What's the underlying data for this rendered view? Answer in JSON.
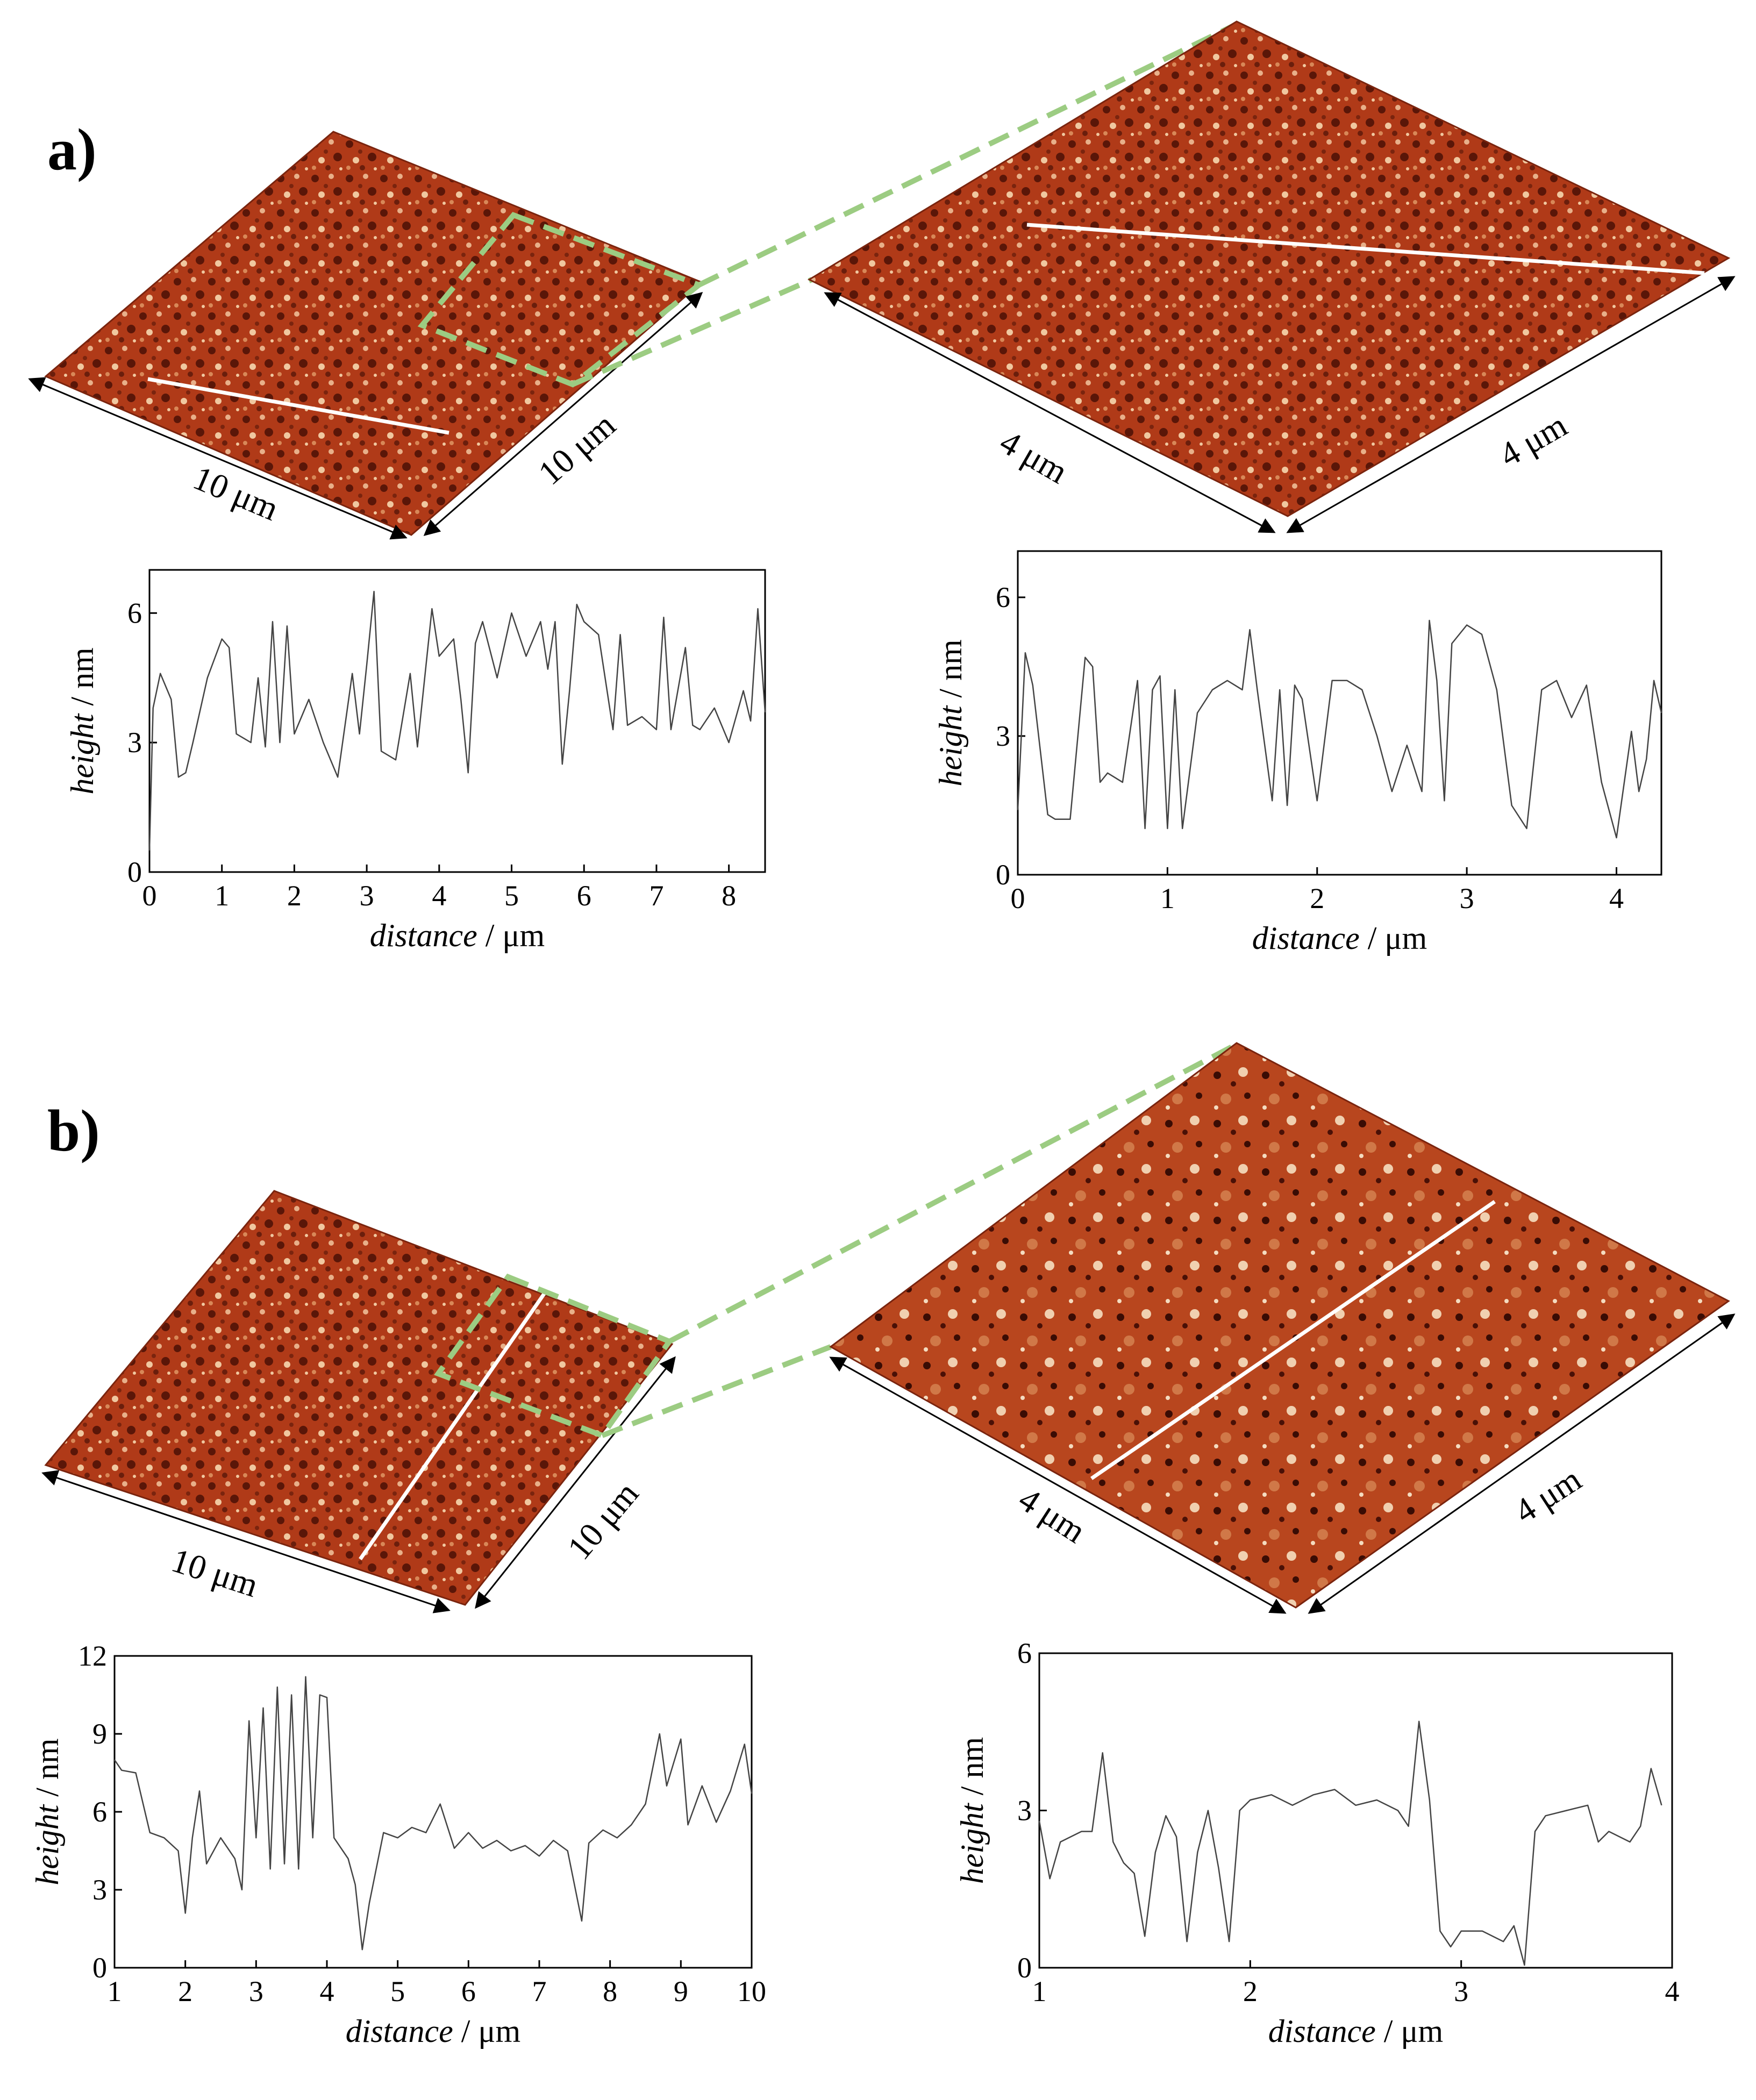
{
  "panels": [
    {
      "label": "a)",
      "large_scan": {
        "x_label": "10 μm",
        "y_label": "10 μm"
      },
      "zoom_scan": {
        "x_label": "4 μm",
        "y_label": "4 μm"
      }
    },
    {
      "label": "b)",
      "large_scan": {
        "x_label": "10 μm",
        "y_label": "10 μm"
      },
      "zoom_scan": {
        "x_label": "4 μm",
        "y_label": "4 μm"
      }
    }
  ],
  "colors": {
    "afm_dark": "#5a1608",
    "afm_mid": "#b8401c",
    "afm_light": "#f0c8a0",
    "zoom_box": "#9ccc82",
    "profile_line": "#ffffff",
    "trace": "#444444"
  },
  "chart_data": [
    {
      "type": "line",
      "panel": "a)",
      "xlabel_italic": "distance",
      "xlabel_unit": " / μm",
      "ylabel_italic": "height",
      "ylabel_unit": " / nm",
      "xlim": [
        0,
        8.5
      ],
      "ylim": [
        0,
        7
      ],
      "xticks": [
        "0",
        "1",
        "2",
        "3",
        "4",
        "5",
        "6",
        "7",
        "8"
      ],
      "yticks": [
        "0",
        "3",
        "6"
      ],
      "x": [
        0,
        0.05,
        0.15,
        0.3,
        0.4,
        0.5,
        0.6,
        0.8,
        1.0,
        1.1,
        1.2,
        1.4,
        1.5,
        1.6,
        1.7,
        1.8,
        1.9,
        2.0,
        2.2,
        2.4,
        2.6,
        2.8,
        2.9,
        3.0,
        3.1,
        3.2,
        3.4,
        3.6,
        3.7,
        3.9,
        4.0,
        4.2,
        4.3,
        4.4,
        4.5,
        4.6,
        4.8,
        5.0,
        5.2,
        5.4,
        5.5,
        5.6,
        5.7,
        5.8,
        5.9,
        6.0,
        6.2,
        6.4,
        6.5,
        6.6,
        6.8,
        7.0,
        7.1,
        7.2,
        7.4,
        7.5,
        7.6,
        7.8,
        8.0,
        8.2,
        8.3,
        8.4,
        8.5
      ],
      "y": [
        0.5,
        3.8,
        4.6,
        4.0,
        2.2,
        2.3,
        3.0,
        4.5,
        5.4,
        5.2,
        3.2,
        3.0,
        4.5,
        2.9,
        5.8,
        3.0,
        5.7,
        3.2,
        4.0,
        3.0,
        2.2,
        4.6,
        3.2,
        4.8,
        6.5,
        2.8,
        2.6,
        4.6,
        2.9,
        6.1,
        5.0,
        5.4,
        4.0,
        2.3,
        5.3,
        5.8,
        4.5,
        6.0,
        5.0,
        5.8,
        4.7,
        5.8,
        2.5,
        4.2,
        6.2,
        5.8,
        5.5,
        3.3,
        5.5,
        3.4,
        3.6,
        3.3,
        5.9,
        3.3,
        5.2,
        3.4,
        3.3,
        3.8,
        3.0,
        4.2,
        3.5,
        6.1,
        3.7
      ]
    },
    {
      "type": "line",
      "panel": "a)",
      "xlabel_italic": "distance",
      "xlabel_unit": " / μm",
      "ylabel_italic": "height",
      "ylabel_unit": " / nm",
      "xlim": [
        0,
        4.3
      ],
      "ylim": [
        0,
        7
      ],
      "xticks": [
        "0",
        "1",
        "2",
        "3",
        "4"
      ],
      "yticks": [
        "0",
        "3",
        "6"
      ],
      "x": [
        0,
        0.05,
        0.1,
        0.2,
        0.25,
        0.35,
        0.45,
        0.5,
        0.55,
        0.6,
        0.7,
        0.8,
        0.85,
        0.9,
        0.95,
        1.0,
        1.05,
        1.1,
        1.2,
        1.3,
        1.4,
        1.5,
        1.55,
        1.6,
        1.7,
        1.75,
        1.8,
        1.85,
        1.9,
        2.0,
        2.1,
        2.2,
        2.3,
        2.4,
        2.5,
        2.6,
        2.7,
        2.75,
        2.8,
        2.85,
        2.9,
        3.0,
        3.1,
        3.2,
        3.3,
        3.4,
        3.5,
        3.6,
        3.7,
        3.8,
        3.9,
        4.0,
        4.1,
        4.15,
        4.2,
        4.25,
        4.3
      ],
      "y": [
        1.4,
        4.8,
        4.1,
        1.3,
        1.2,
        1.2,
        4.7,
        4.5,
        2.0,
        2.2,
        2.0,
        4.2,
        1.0,
        4.0,
        4.3,
        1.0,
        4.0,
        1.0,
        3.5,
        4.0,
        4.2,
        4.0,
        5.3,
        4.0,
        1.6,
        4.0,
        1.5,
        4.1,
        3.8,
        1.6,
        4.2,
        4.2,
        4.0,
        3.0,
        1.8,
        2.8,
        1.8,
        5.5,
        4.2,
        1.6,
        5.0,
        5.4,
        5.2,
        4.0,
        1.5,
        1.0,
        4.0,
        4.2,
        3.4,
        4.1,
        2.0,
        0.8,
        3.1,
        1.8,
        2.5,
        4.2,
        3.5
      ]
    },
    {
      "type": "line",
      "panel": "b)",
      "xlabel_italic": "distance",
      "xlabel_unit": " / μm",
      "ylabel_italic": "height",
      "ylabel_unit": " / nm",
      "xlim": [
        1,
        10
      ],
      "ylim": [
        0,
        12
      ],
      "xticks": [
        "1",
        "2",
        "3",
        "4",
        "5",
        "6",
        "7",
        "8",
        "9",
        "10"
      ],
      "yticks": [
        "0",
        "3",
        "6",
        "9",
        "12"
      ],
      "x": [
        1,
        1.1,
        1.3,
        1.5,
        1.7,
        1.9,
        2.0,
        2.1,
        2.2,
        2.3,
        2.5,
        2.7,
        2.8,
        2.9,
        3.0,
        3.1,
        3.2,
        3.3,
        3.4,
        3.5,
        3.6,
        3.7,
        3.8,
        3.9,
        4.0,
        4.1,
        4.3,
        4.4,
        4.5,
        4.6,
        4.8,
        5.0,
        5.2,
        5.4,
        5.6,
        5.8,
        6.0,
        6.2,
        6.4,
        6.6,
        6.8,
        7.0,
        7.2,
        7.4,
        7.6,
        7.7,
        7.9,
        8.1,
        8.3,
        8.5,
        8.7,
        8.8,
        9.0,
        9.1,
        9.3,
        9.5,
        9.7,
        9.9,
        10
      ],
      "y": [
        8.0,
        7.6,
        7.5,
        5.2,
        5.0,
        4.5,
        2.1,
        5.0,
        6.8,
        4.0,
        5.0,
        4.2,
        3.0,
        9.5,
        5.0,
        10.0,
        3.8,
        10.8,
        4.0,
        10.5,
        3.8,
        11.2,
        5.0,
        10.5,
        10.4,
        5.0,
        4.2,
        3.2,
        0.7,
        2.5,
        5.2,
        5.0,
        5.4,
        5.2,
        6.3,
        4.6,
        5.2,
        4.6,
        4.9,
        4.5,
        4.7,
        4.3,
        4.9,
        4.5,
        1.8,
        4.8,
        5.3,
        5.0,
        5.5,
        6.3,
        9.0,
        7.0,
        8.8,
        5.5,
        7.0,
        5.6,
        6.8,
        8.6,
        6.7
      ]
    },
    {
      "type": "line",
      "panel": "b)",
      "xlabel_italic": "distance",
      "xlabel_unit": " / μm",
      "ylabel_italic": "height",
      "ylabel_unit": " / nm",
      "xlim": [
        1,
        4
      ],
      "ylim": [
        0,
        6
      ],
      "xticks": [
        "1",
        "2",
        "3",
        "4"
      ],
      "yticks": [
        "0",
        "3",
        "6"
      ],
      "x": [
        1.0,
        1.05,
        1.1,
        1.15,
        1.2,
        1.25,
        1.3,
        1.35,
        1.4,
        1.45,
        1.5,
        1.55,
        1.6,
        1.65,
        1.7,
        1.75,
        1.8,
        1.85,
        1.9,
        1.95,
        2.0,
        2.1,
        2.2,
        2.3,
        2.4,
        2.5,
        2.6,
        2.7,
        2.75,
        2.8,
        2.85,
        2.9,
        2.95,
        3.0,
        3.1,
        3.2,
        3.25,
        3.3,
        3.35,
        3.4,
        3.5,
        3.6,
        3.65,
        3.7,
        3.8,
        3.85,
        3.9,
        3.95
      ],
      "y": [
        2.8,
        1.7,
        2.4,
        2.5,
        2.6,
        2.6,
        4.1,
        2.4,
        2.0,
        1.8,
        0.6,
        2.2,
        2.9,
        2.5,
        0.5,
        2.2,
        3.0,
        1.9,
        0.5,
        3.0,
        3.2,
        3.3,
        3.1,
        3.3,
        3.4,
        3.1,
        3.2,
        3.0,
        2.7,
        4.7,
        3.2,
        0.7,
        0.4,
        0.7,
        0.7,
        0.5,
        0.8,
        0.05,
        2.6,
        2.9,
        3.0,
        3.1,
        2.4,
        2.6,
        2.4,
        2.7,
        3.8,
        3.1
      ]
    }
  ]
}
